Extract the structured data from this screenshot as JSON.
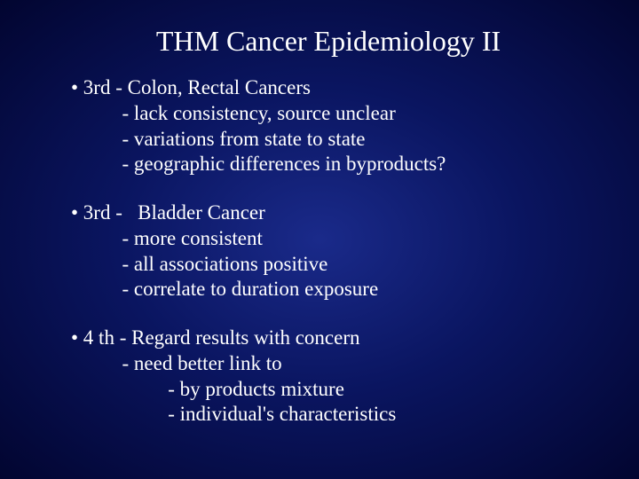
{
  "title": "THM Cancer Epidemiology II",
  "background": {
    "center_color": "#1a2a8a",
    "mid_color": "#0a1560",
    "edge_color": "#020530"
  },
  "text_color": "#ffffff",
  "title_fontsize": 32,
  "body_fontsize": 23,
  "font_family": "Times New Roman",
  "blocks": [
    {
      "lead": "• 3rd - Colon, Rectal Cancers",
      "subs": [
        "          - lack consistency, source unclear",
        "          - variations from state to state",
        "          - geographic differences in byproducts?"
      ]
    },
    {
      "lead": "• 3rd -   Bladder Cancer",
      "subs": [
        "          - more consistent",
        "          - all associations positive",
        "          - correlate to duration exposure"
      ]
    },
    {
      "lead": "• 4 th - Regard results with concern",
      "subs": [
        "          - need better link to",
        "                   - by products mixture",
        "                   - individual's characteristics"
      ]
    }
  ]
}
